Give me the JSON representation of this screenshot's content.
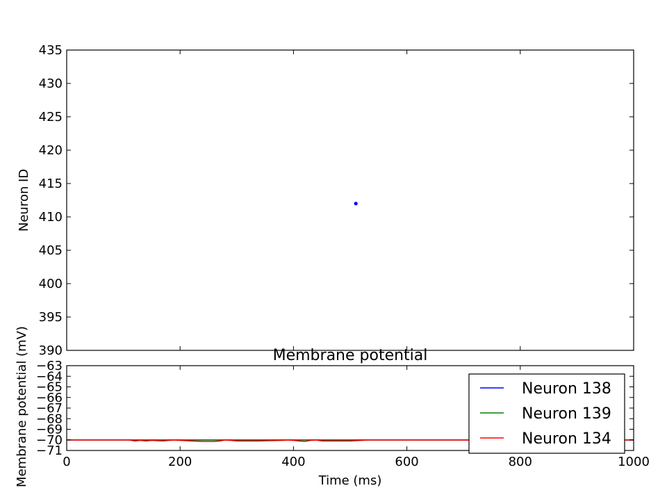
{
  "chart_data": [
    {
      "type": "scatter",
      "title": "",
      "xlabel": "",
      "ylabel": "Neuron ID",
      "xlim": [
        0,
        1000
      ],
      "ylim": [
        390,
        435
      ],
      "xticks": [
        0,
        200,
        400,
        600,
        800,
        1000
      ],
      "yticks": [
        390,
        395,
        400,
        405,
        410,
        415,
        420,
        425,
        430,
        435
      ],
      "x_tick_labels_visible": false,
      "grid": false,
      "legend": false,
      "series": [
        {
          "color": "#0000ff",
          "points": [
            {
              "x": 510,
              "y": 412
            }
          ]
        }
      ]
    },
    {
      "type": "line",
      "title": "Membrane potential",
      "xlabel": "Time (ms)",
      "ylabel": "Membrane potential (mV)",
      "xlim": [
        0,
        1000
      ],
      "ylim": [
        -71,
        -63
      ],
      "xticks": [
        0,
        200,
        400,
        600,
        800,
        1000
      ],
      "yticks": [
        -71,
        -70,
        -69,
        -68,
        -67,
        -66,
        -65,
        -64,
        -63
      ],
      "grid": false,
      "legend_position": "right",
      "series": [
        {
          "name": "Neuron 138",
          "color": "#0000ff",
          "x": [
            0,
            1000
          ],
          "y": [
            -70.0,
            -70.0
          ]
        },
        {
          "name": "Neuron 139",
          "color": "#008000",
          "x": [
            0,
            1000
          ],
          "y": [
            -70.0,
            -70.0
          ]
        },
        {
          "name": "Neuron 134",
          "color": "#ff0000",
          "x": [
            0,
            110,
            120,
            130,
            140,
            150,
            170,
            180,
            190,
            200,
            220,
            240,
            260,
            270,
            280,
            290,
            300,
            340,
            380,
            390,
            400,
            410,
            420,
            430,
            440,
            450,
            470,
            500,
            520,
            530,
            540,
            1000
          ],
          "y": [
            -70.0,
            -70.0,
            -70.1,
            -70.05,
            -70.1,
            -70.05,
            -70.1,
            -70.05,
            -70.0,
            -70.05,
            -70.1,
            -70.15,
            -70.15,
            -70.1,
            -70.0,
            -70.05,
            -70.1,
            -70.1,
            -70.05,
            -70.0,
            -70.05,
            -70.1,
            -70.15,
            -70.05,
            -70.0,
            -70.1,
            -70.1,
            -70.1,
            -70.05,
            -70.0,
            -70.0,
            -70.0
          ]
        }
      ]
    }
  ]
}
